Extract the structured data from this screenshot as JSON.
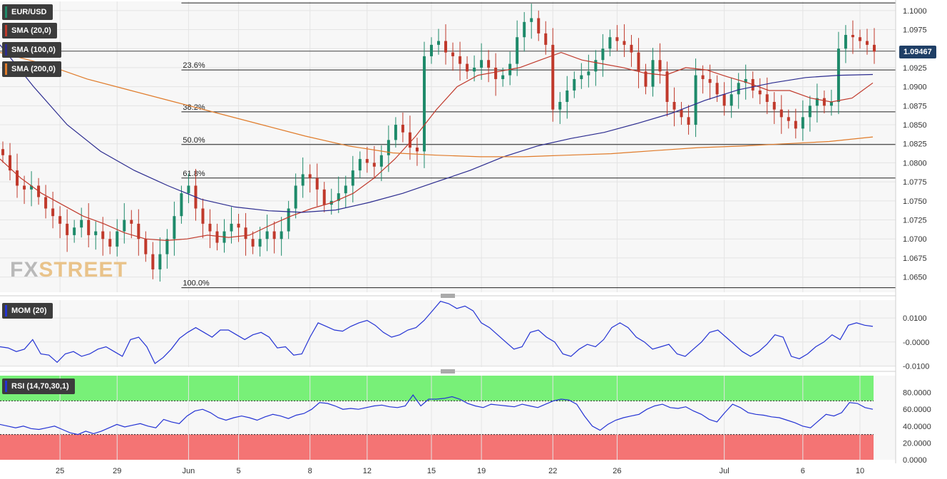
{
  "legends": {
    "pair": "EUR/USD",
    "sma20": "SMA (20,0)",
    "sma100": "SMA (100,0)",
    "sma200": "SMA (200,0)",
    "mom": "MOM (20)",
    "rsi": "RSI (14,70,30,1)"
  },
  "colors": {
    "up": "#1e8a6a",
    "down": "#c0392b",
    "sma20": "#c0392b",
    "sma100": "#2b2b8f",
    "sma200": "#e07b2a",
    "mom": "#2433d4",
    "rsi": "#2433d4",
    "rsi_overbought": "#78f078",
    "rsi_oversold": "#f47474"
  },
  "current_price": "1.09467",
  "watermark": {
    "part_a": "FX",
    "part_b": "STREET"
  },
  "chart_data": [
    {
      "type": "candlestick",
      "title": "EUR/USD",
      "ylim": [
        1.063,
        1.1012
      ],
      "yticks": [
        "1.1000",
        "1.0975",
        "1.0950",
        "1.0925",
        "1.0900",
        "1.0875",
        "1.0850",
        "1.0825",
        "1.0800",
        "1.0775",
        "1.0750",
        "1.0725",
        "1.0700",
        "1.0675",
        "1.0650"
      ],
      "xticks": [
        "25",
        "29",
        "Jun",
        "5",
        "8",
        "12",
        "15",
        "19",
        "22",
        "26",
        "Jul",
        "6",
        "10"
      ],
      "close_path": [
        1.081,
        1.079,
        1.077,
        1.0765,
        1.077,
        1.0755,
        1.074,
        1.073,
        1.072,
        1.0705,
        1.0715,
        1.0725,
        1.0705,
        1.071,
        1.07,
        1.069,
        1.071,
        1.0725,
        1.072,
        1.07,
        1.068,
        1.066,
        1.068,
        1.07,
        1.073,
        1.076,
        1.077,
        1.074,
        1.072,
        1.071,
        1.0695,
        1.071,
        1.072,
        1.0715,
        1.07,
        1.069,
        1.07,
        1.071,
        1.07,
        1.071,
        1.074,
        1.077,
        1.0785,
        1.078,
        1.0765,
        1.0745,
        1.075,
        1.076,
        1.077,
        1.079,
        1.0805,
        1.08,
        1.0795,
        1.081,
        1.083,
        1.085,
        1.084,
        1.082,
        1.0815,
        1.094,
        1.0955,
        1.096,
        1.0945,
        1.094,
        1.093,
        1.092,
        1.0925,
        1.0935,
        1.0925,
        1.091,
        1.0915,
        1.093,
        1.0965,
        1.0985,
        1.099,
        1.097,
        1.0955,
        1.087,
        1.088,
        1.0895,
        1.091,
        1.0915,
        1.092,
        1.0935,
        1.095,
        1.0965,
        1.096,
        1.0955,
        1.0945,
        1.092,
        1.09,
        1.0935,
        1.092,
        1.088,
        1.087,
        1.086,
        1.085,
        1.0915,
        1.091,
        1.0905,
        1.089,
        1.0875,
        1.089,
        1.0905,
        1.091,
        1.0895,
        1.089,
        1.088,
        1.087,
        1.086,
        1.0855,
        1.0845,
        1.086,
        1.0875,
        1.0885,
        1.0875,
        1.088,
        1.095,
        1.0968,
        1.0965,
        1.096,
        1.0955,
        1.0946
      ],
      "fibonacci": [
        {
          "label": "23.6%",
          "value": 1.0922
        },
        {
          "label": "38.2%",
          "value": 1.0867
        },
        {
          "label": "50.0%",
          "value": 1.0824
        },
        {
          "label": "61.8%",
          "value": 1.078
        },
        {
          "label": "100.0%",
          "value": 1.0636
        }
      ],
      "top_line": 1.101,
      "series": [
        {
          "name": "SMA (20,0)",
          "values": [
            1.0805,
            1.078,
            1.076,
            1.0745,
            1.073,
            1.072,
            1.0708,
            1.07,
            1.0698,
            1.07,
            1.0705,
            1.0702,
            1.0705,
            1.0718,
            1.073,
            1.074,
            1.0748,
            1.076,
            1.078,
            1.0805,
            1.0835,
            1.087,
            1.09,
            1.0915,
            1.092,
            1.0925,
            1.0935,
            1.0945,
            1.0935,
            1.093,
            1.0925,
            1.0918,
            1.0915,
            1.0925,
            1.0922,
            1.0913,
            1.0905,
            1.0895,
            1.0895,
            1.0885,
            1.088,
            1.0885,
            1.0905
          ]
        },
        {
          "name": "SMA (100,0)",
          "values": [
            1.0955,
            1.09,
            1.085,
            1.0815,
            1.079,
            1.077,
            1.0752,
            1.0742,
            1.0737,
            1.0735,
            1.0738,
            1.0748,
            1.076,
            1.0775,
            1.079,
            1.0808,
            1.0822,
            1.0832,
            1.084,
            1.0852,
            1.0865,
            1.0882,
            1.0896,
            1.0905,
            1.0912,
            1.0915,
            1.0916
          ]
        },
        {
          "name": "SMA (200,0)",
          "values": [
            1.0945,
            1.093,
            1.091,
            1.0895,
            1.088,
            1.0865,
            1.085,
            1.0835,
            1.0822,
            1.0813,
            1.081,
            1.0808,
            1.0808,
            1.081,
            1.0812,
            1.0816,
            1.082,
            1.0822,
            1.0825,
            1.0828,
            1.0834
          ]
        }
      ]
    },
    {
      "type": "line",
      "title": "MOM (20)",
      "ylim": [
        -0.0105,
        0.0175
      ],
      "yticks": [
        "0.0100",
        "-0.0000",
        "-0.0100"
      ],
      "series": [
        {
          "name": "MOM (20)",
          "values": [
            -0.002,
            -0.0025,
            -0.004,
            -0.003,
            0.001,
            -0.005,
            -0.0055,
            -0.0085,
            -0.005,
            -0.004,
            -0.006,
            -0.005,
            -0.003,
            -0.002,
            -0.004,
            -0.006,
            0.001,
            0.002,
            -0.002,
            -0.009,
            -0.0065,
            -0.003,
            0.0015,
            0.004,
            0.006,
            0.004,
            0.002,
            0.005,
            0.005,
            0.003,
            0.001,
            0.003,
            0.004,
            0.002,
            -0.0025,
            -0.002,
            -0.0055,
            -0.005,
            0.002,
            0.008,
            0.0065,
            0.005,
            0.0045,
            0.0065,
            0.008,
            0.009,
            0.007,
            0.004,
            0.002,
            0.003,
            0.005,
            0.006,
            0.009,
            0.013,
            0.017,
            0.016,
            0.014,
            0.015,
            0.013,
            0.008,
            0.006,
            0.003,
            0.0,
            -0.003,
            -0.002,
            0.004,
            0.005,
            0.002,
            0.0,
            -0.005,
            -0.006,
            -0.003,
            -0.001,
            -0.002,
            0.001,
            0.006,
            0.008,
            0.006,
            0.002,
            0.0,
            -0.003,
            -0.002,
            -0.001,
            -0.005,
            -0.006,
            -0.003,
            0.0,
            0.004,
            0.005,
            0.002,
            -0.001,
            -0.004,
            -0.006,
            -0.004,
            -0.001,
            0.003,
            0.002,
            -0.006,
            -0.007,
            -0.005,
            -0.002,
            0.0,
            0.003,
            0.001,
            0.007,
            0.008,
            0.007,
            0.0065
          ]
        }
      ]
    },
    {
      "type": "line",
      "title": "RSI (14,70,30,1)",
      "ylim": [
        0,
        100
      ],
      "yticks": [
        "80.0000",
        "60.0000",
        "40.0000",
        "20.0000",
        "0.0000"
      ],
      "bands": {
        "overbought": 70,
        "oversold": 30
      },
      "series": [
        {
          "name": "RSI (14,70,30,1)",
          "values": [
            42,
            40,
            38,
            40,
            37,
            36,
            38,
            40,
            36,
            32,
            30,
            34,
            31,
            34,
            38,
            42,
            39,
            41,
            43,
            40,
            38,
            48,
            45,
            43,
            52,
            58,
            60,
            56,
            50,
            47,
            50,
            52,
            50,
            47,
            51,
            54,
            52,
            49,
            53,
            55,
            60,
            68,
            67,
            64,
            60,
            61,
            60,
            62,
            64,
            65,
            63,
            62,
            64,
            77,
            64,
            72,
            72,
            73,
            75,
            72,
            67,
            64,
            62,
            66,
            65,
            64,
            63,
            66,
            64,
            62,
            66,
            70,
            72,
            71,
            66,
            52,
            40,
            35,
            42,
            47,
            50,
            52,
            54,
            60,
            64,
            66,
            62,
            61,
            63,
            58,
            54,
            48,
            45,
            56,
            66,
            62,
            56,
            54,
            53,
            51,
            50,
            47,
            44,
            40,
            38,
            46,
            54,
            52,
            56,
            68,
            67,
            62,
            60
          ]
        }
      ]
    }
  ]
}
